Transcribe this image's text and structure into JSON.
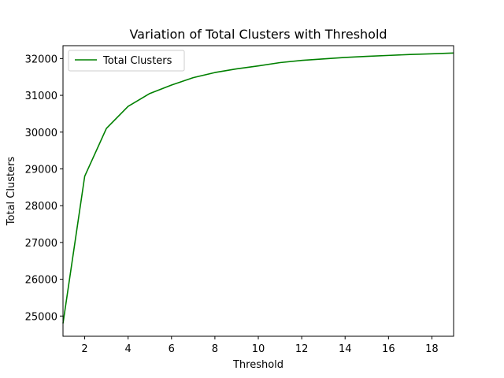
{
  "chart_data": {
    "type": "line",
    "title": "Variation of Total Clusters with Threshold",
    "xlabel": "Threshold",
    "ylabel": "Total Clusters",
    "xlim": [
      1,
      19
    ],
    "ylim": [
      24450,
      32350
    ],
    "xticks": [
      2,
      4,
      6,
      8,
      10,
      12,
      14,
      16,
      18
    ],
    "yticks": [
      25000,
      26000,
      27000,
      28000,
      29000,
      30000,
      31000,
      32000
    ],
    "grid": false,
    "legend_position": "top-left",
    "series": [
      {
        "name": "Total Clusters",
        "color": "#008000",
        "x": [
          1,
          2,
          3,
          4,
          5,
          6,
          7,
          8,
          9,
          10,
          11,
          12,
          13,
          14,
          15,
          16,
          17,
          18,
          19
        ],
        "y": [
          24800,
          28800,
          30100,
          30700,
          31050,
          31280,
          31480,
          31620,
          31720,
          31800,
          31890,
          31950,
          31990,
          32030,
          32060,
          32085,
          32110,
          32130,
          32150
        ]
      }
    ]
  }
}
